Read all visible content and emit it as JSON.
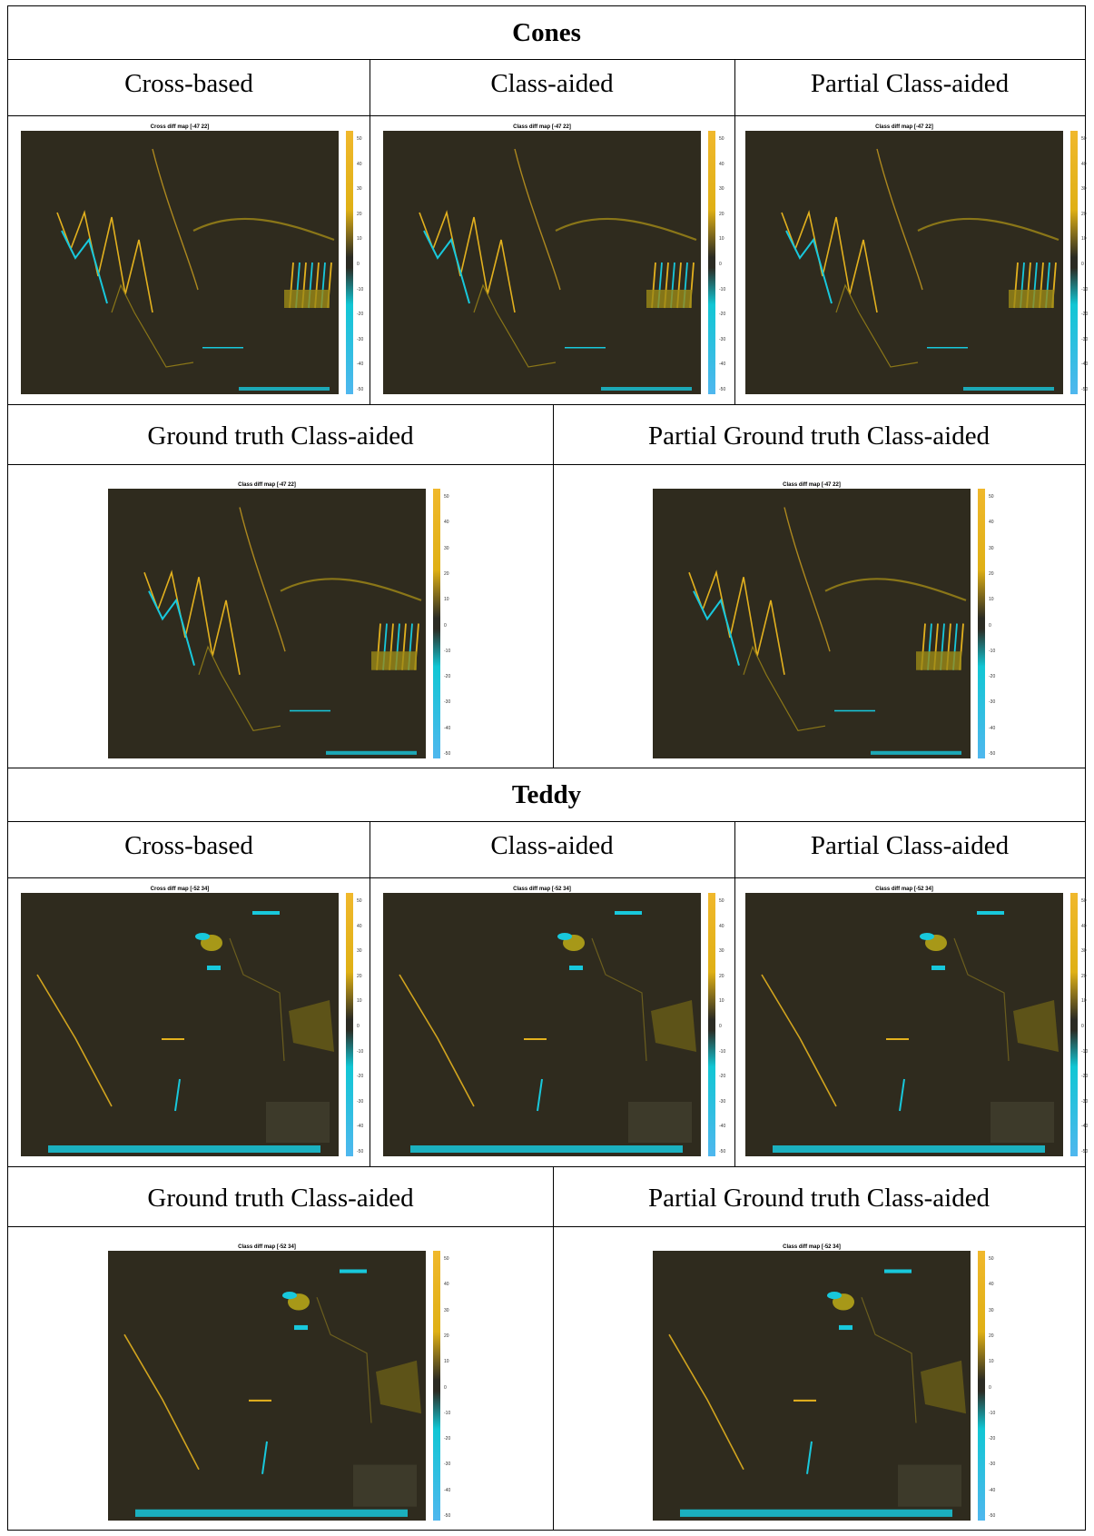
{
  "colors": {
    "map_background": "#2f2b1e",
    "positive_error": "#e3b11e",
    "negative_error": "#18c8dc"
  },
  "colorbar_ticks": [
    "50",
    "40",
    "30",
    "20",
    "10",
    "0",
    "-10",
    "-20",
    "-30",
    "-40",
    "-50"
  ],
  "sections": [
    {
      "heading": "Cones",
      "row1_labels": [
        "Cross-based",
        "Class-aided",
        "Partial Class-aided"
      ],
      "row1_map_titles": [
        "Cross diff map [-47  22]",
        "Class diff map [-47  22]",
        "Class diff map [-47  22]"
      ],
      "row2_labels": [
        "Ground truth Class-aided",
        "Partial Ground truth Class-aided"
      ],
      "row2_map_titles": [
        "Class diff map [-47  22]",
        "Class diff map [-47  22]"
      ]
    },
    {
      "heading": "Teddy",
      "row1_labels": [
        "Cross-based",
        "Class-aided",
        "Partial Class-aided"
      ],
      "row1_map_titles": [
        "Cross diff map [-52  34]",
        "Class diff map [-52  34]",
        "Class diff map [-52  34]"
      ],
      "row2_labels": [
        "Ground truth Class-aided",
        "Partial Ground truth Class-aided"
      ],
      "row2_map_titles": [
        "Class diff map [-52  34]",
        "Class diff map [-52  34]"
      ]
    }
  ]
}
